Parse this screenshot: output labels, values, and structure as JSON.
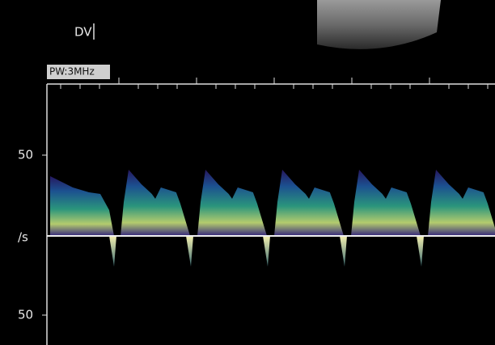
{
  "header": {
    "vessel": "DV",
    "mode": "PW:3MHz"
  },
  "scale": {
    "upper": "50",
    "unit": "/s",
    "lower": "50"
  }
}
